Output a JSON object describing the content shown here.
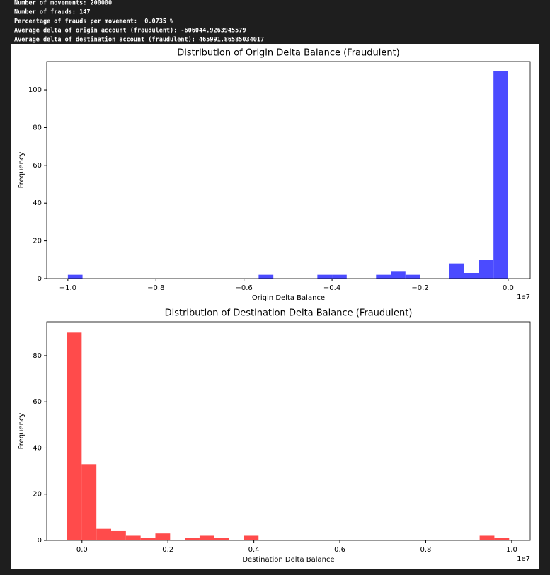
{
  "console": [
    "Number of movements: 200000",
    "Number of frauds: 147",
    "Percentage of frauds per movement:  0.0735 %",
    "Average delta of origin account (fraudulent): -606044.9263945579",
    "Average delta of destination account (fraudulent): 465991.86585034017"
  ],
  "chart_data": [
    {
      "type": "histogram",
      "title": "Distribution of Origin Delta Balance (Fraudulent)",
      "x_label": "Origin Delta Balance",
      "y_label": "Frequency",
      "x_offset_label": "1e7",
      "color": "#4b4bff",
      "bins": [
        -1.0,
        -0.9667,
        -0.9333,
        -0.9,
        -0.8667,
        -0.8333,
        -0.8,
        -0.7667,
        -0.7333,
        -0.7,
        -0.6667,
        -0.6333,
        -0.6,
        -0.5667,
        -0.5333,
        -0.5,
        -0.4667,
        -0.4333,
        -0.4,
        -0.3667,
        -0.3333,
        -0.3,
        -0.2667,
        -0.2333,
        -0.2,
        -0.1667,
        -0.1333,
        -0.1,
        -0.0667,
        -0.0333,
        0.0
      ],
      "values": [
        2,
        0,
        0,
        0,
        0,
        0,
        0,
        0,
        0,
        0,
        0,
        0,
        0,
        2,
        0,
        0,
        0,
        2,
        2,
        0,
        0,
        2,
        4,
        2,
        0,
        0,
        8,
        3,
        10,
        110
      ],
      "xlim": [
        -1.048,
        0.05
      ],
      "ylim": [
        0,
        115
      ],
      "xticks": [
        {
          "value": -1.0,
          "label": "−1.0"
        },
        {
          "value": -0.8,
          "label": "−0.8"
        },
        {
          "value": -0.6,
          "label": "−0.6"
        },
        {
          "value": -0.4,
          "label": "−0.4"
        },
        {
          "value": -0.2,
          "label": "−0.2"
        },
        {
          "value": 0,
          "label": "0.0"
        }
      ],
      "yticks": [
        0,
        20,
        40,
        60,
        80,
        100
      ]
    },
    {
      "type": "histogram",
      "title": "Distribution of Destination Delta Balance (Fraudulent)",
      "x_label": "Destination Delta Balance",
      "y_label": "Frequency",
      "x_offset_label": "1e7",
      "color": "#ff4b4b",
      "bins": [
        -0.035,
        -0.0007,
        0.0336,
        0.0679,
        0.1022,
        0.1365,
        0.1708,
        0.2051,
        0.2394,
        0.2737,
        0.308,
        0.3423,
        0.3766,
        0.4109,
        0.4452,
        0.4795,
        0.5138,
        0.5481,
        0.5824,
        0.6167,
        0.651,
        0.6853,
        0.7196,
        0.7539,
        0.7882,
        0.8225,
        0.8568,
        0.8911,
        0.9254,
        0.9597,
        0.994
      ],
      "values": [
        90,
        33,
        5,
        4,
        2,
        1,
        3,
        0,
        1,
        2,
        1,
        0,
        2,
        0,
        0,
        0,
        0,
        0,
        0,
        0,
        0,
        0,
        0,
        0,
        0,
        0,
        0,
        0,
        2,
        1
      ],
      "xlim": [
        -0.082,
        1.043
      ],
      "ylim": [
        0,
        94.7
      ],
      "xticks": [
        {
          "value": 0,
          "label": "0.0"
        },
        {
          "value": 0.2,
          "label": "0.2"
        },
        {
          "value": 0.4,
          "label": "0.4"
        },
        {
          "value": 0.6,
          "label": "0.6"
        },
        {
          "value": 0.8,
          "label": "0.8"
        },
        {
          "value": 1.0,
          "label": "1.0"
        }
      ],
      "yticks": [
        0,
        20,
        40,
        60,
        80
      ]
    }
  ]
}
